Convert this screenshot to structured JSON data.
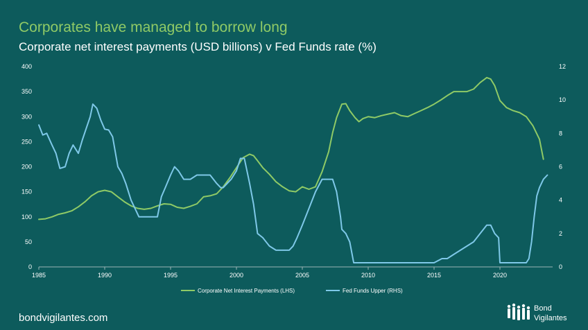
{
  "header": {
    "headline": "Corporates have managed to borrow long",
    "subheadline": "Corporate net interest payments (USD billions) v Fed Funds rate (%)"
  },
  "footer": {
    "website": "bondvigilantes.com",
    "logo_line1": "Bond",
    "logo_line2": "Vigilantes"
  },
  "colors": {
    "background": "#0d5b5c",
    "lhs_series": "#8fca66",
    "rhs_series": "#7ec8e8",
    "axis": "#9bb6b6",
    "text": "#ffffff"
  },
  "chart_data": {
    "type": "line",
    "title": "Corporate net interest payments (USD billions) v Fed Funds rate (%)",
    "xlim": [
      1985,
      2024
    ],
    "x_ticks": [
      1985,
      1990,
      1995,
      2000,
      2005,
      2010,
      2015,
      2020
    ],
    "y_left": {
      "lim": [
        0,
        400
      ],
      "ticks": [
        0,
        50,
        100,
        150,
        200,
        250,
        300,
        350,
        400
      ]
    },
    "y_right": {
      "lim": [
        0,
        12
      ],
      "ticks": [
        0,
        2,
        4,
        6,
        8,
        10,
        12
      ]
    },
    "legend_position": "bottom",
    "series": [
      {
        "name": "Corporate Net Interest Payments (LHS)",
        "axis": "left",
        "color": "#8fca66",
        "x": [
          1985,
          1985.5,
          1986,
          1986.5,
          1987,
          1987.5,
          1988,
          1988.5,
          1989,
          1989.5,
          1990,
          1990.5,
          1991,
          1991.5,
          1992,
          1992.5,
          1993,
          1993.5,
          1994,
          1994.5,
          1995,
          1995.5,
          1996,
          1996.5,
          1997,
          1997.5,
          1998,
          1998.5,
          1999,
          1999.5,
          2000,
          2000.5,
          2001,
          2001.3,
          2001.6,
          2002,
          2002.5,
          2003,
          2003.5,
          2004,
          2004.5,
          2005,
          2005.5,
          2006,
          2006.5,
          2007,
          2007.3,
          2007.6,
          2008,
          2008.3,
          2008.6,
          2009,
          2009.3,
          2009.6,
          2010,
          2010.5,
          2011,
          2011.5,
          2012,
          2012.5,
          2013,
          2013.5,
          2014,
          2014.5,
          2015,
          2015.5,
          2016,
          2016.5,
          2017,
          2017.5,
          2018,
          2018.5,
          2019,
          2019.3,
          2019.6,
          2020,
          2020.5,
          2021,
          2021.5,
          2022,
          2022.5,
          2023,
          2023.3
        ],
        "y": [
          95,
          96,
          100,
          105,
          108,
          112,
          120,
          130,
          142,
          150,
          153,
          150,
          140,
          130,
          122,
          117,
          115,
          117,
          122,
          126,
          125,
          119,
          117,
          121,
          126,
          140,
          142,
          146,
          160,
          178,
          198,
          218,
          225,
          222,
          212,
          198,
          185,
          170,
          160,
          152,
          150,
          160,
          155,
          160,
          190,
          230,
          268,
          298,
          325,
          326,
          312,
          298,
          290,
          296,
          300,
          298,
          302,
          305,
          308,
          302,
          300,
          306,
          312,
          318,
          325,
          333,
          342,
          350,
          350,
          350,
          355,
          368,
          378,
          375,
          362,
          332,
          318,
          312,
          308,
          300,
          282,
          255,
          215
        ]
      },
      {
        "name": "Fed Funds Upper (RHS)",
        "axis": "right",
        "color": "#7ec8e8",
        "x": [
          1985,
          1985.3,
          1985.6,
          1986,
          1986.3,
          1986.6,
          1987,
          1987.3,
          1987.6,
          1988,
          1988.3,
          1988.6,
          1988.9,
          1989.1,
          1989.4,
          1989.7,
          1990,
          1990.3,
          1990.6,
          1991,
          1991.3,
          1991.6,
          1992,
          1992.3,
          1992.6,
          1993,
          1993.5,
          1994,
          1994.3,
          1994.6,
          1995,
          1995.3,
          1995.6,
          1996,
          1996.5,
          1997,
          1997.5,
          1998,
          1998.5,
          1998.8,
          1999,
          1999.3,
          1999.6,
          2000,
          2000.3,
          2000.6,
          2001,
          2001.3,
          2001.6,
          2002,
          2002.5,
          2003,
          2003.5,
          2004,
          2004.3,
          2004.6,
          2005,
          2005.5,
          2006,
          2006.5,
          2007,
          2007.3,
          2007.6,
          2007.9,
          2008,
          2008.3,
          2008.6,
          2008.9,
          2009,
          2010,
          2011,
          2012,
          2013,
          2014,
          2015,
          2015.6,
          2016,
          2016.5,
          2017,
          2017.5,
          2018,
          2018.5,
          2019,
          2019.3,
          2019.6,
          2019.9,
          2020,
          2020.2,
          2021,
          2022,
          2022.2,
          2022.4,
          2022.6,
          2022.8,
          2023,
          2023.3,
          2023.6
        ],
        "y": [
          8.5,
          7.9,
          8.0,
          7.3,
          6.8,
          5.9,
          6.0,
          6.8,
          7.3,
          6.8,
          7.6,
          8.3,
          9.0,
          9.75,
          9.5,
          8.8,
          8.25,
          8.2,
          7.8,
          6.0,
          5.6,
          5.0,
          4.0,
          3.5,
          3.0,
          3.0,
          3.0,
          3.0,
          4.2,
          4.75,
          5.5,
          6.0,
          5.75,
          5.25,
          5.25,
          5.5,
          5.5,
          5.5,
          5.0,
          4.75,
          4.75,
          5.0,
          5.25,
          5.75,
          6.5,
          6.5,
          5.0,
          3.75,
          2.0,
          1.75,
          1.25,
          1.0,
          1.0,
          1.0,
          1.25,
          1.75,
          2.5,
          3.5,
          4.5,
          5.25,
          5.25,
          5.25,
          4.5,
          3.0,
          2.25,
          2.0,
          1.5,
          0.25,
          0.25,
          0.25,
          0.25,
          0.25,
          0.25,
          0.25,
          0.25,
          0.5,
          0.5,
          0.75,
          1.0,
          1.25,
          1.5,
          2.0,
          2.5,
          2.5,
          2.0,
          1.75,
          0.25,
          0.25,
          0.25,
          0.25,
          0.5,
          1.5,
          3.0,
          4.25,
          4.75,
          5.25,
          5.5
        ]
      }
    ]
  }
}
